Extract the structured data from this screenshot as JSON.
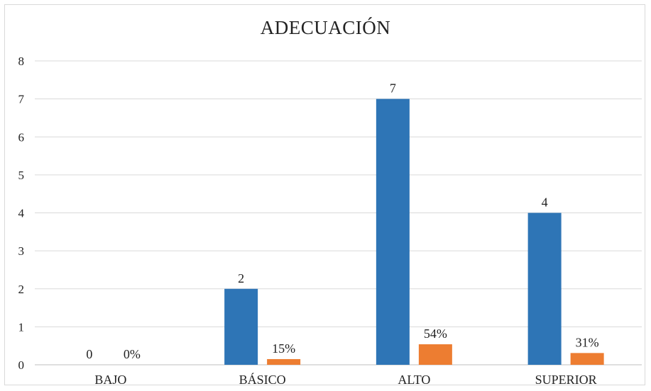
{
  "chart_data": {
    "type": "bar",
    "title": "ADECUACIÓN",
    "categories": [
      "BAJO",
      "BÁSICO",
      "ALTO",
      "SUPERIOR"
    ],
    "ylim": [
      0,
      8
    ],
    "yticks": [
      0,
      1,
      2,
      3,
      4,
      5,
      6,
      7,
      8
    ],
    "grid": true,
    "series": [
      {
        "values": [
          0,
          2,
          7,
          4
        ],
        "labels": [
          "0",
          "2",
          "7",
          "4"
        ],
        "color": "#2e75b6"
      },
      {
        "values": [
          0,
          0.15,
          0.54,
          0.31
        ],
        "labels": [
          "0%",
          "15%",
          "54%",
          "31%"
        ],
        "color": "#ed7d31"
      }
    ]
  }
}
